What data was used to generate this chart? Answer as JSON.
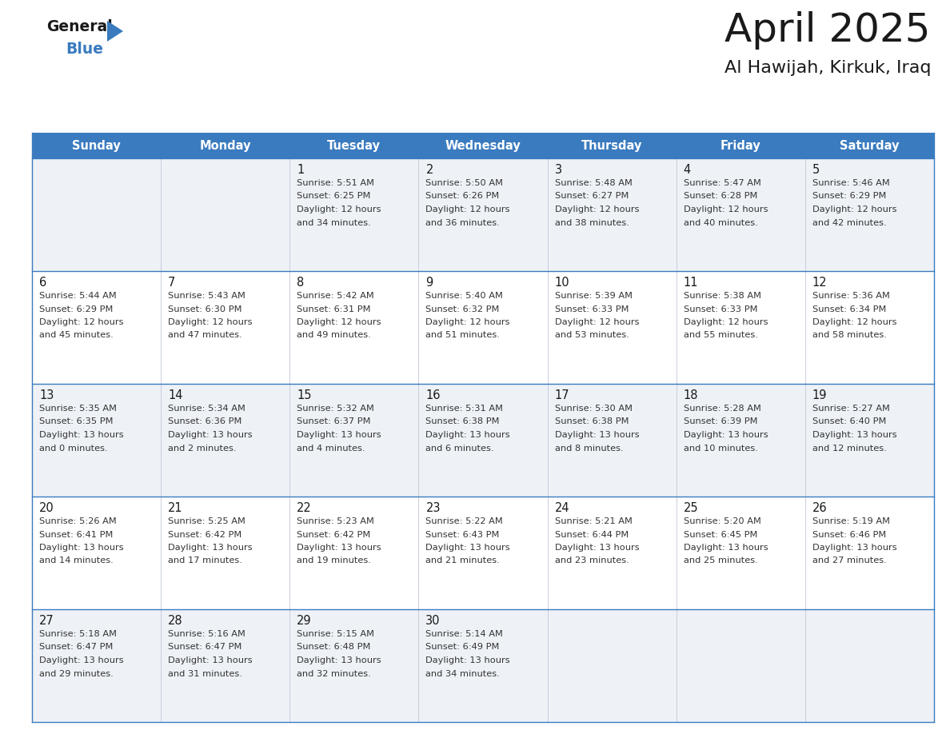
{
  "title": "April 2025",
  "subtitle": "Al Hawijah, Kirkuk, Iraq",
  "header_bg": "#3a7bbf",
  "header_text": "#ffffff",
  "row_bg_odd": "#eef2f7",
  "row_bg_even": "#ffffff",
  "border_color": "#3a7bbf",
  "separator_color": "#c0c8d8",
  "day_headers": [
    "Sunday",
    "Monday",
    "Tuesday",
    "Wednesday",
    "Thursday",
    "Friday",
    "Saturday"
  ],
  "title_color": "#1a1a1a",
  "subtitle_color": "#1a1a1a",
  "day_number_color": "#1a1a1a",
  "cell_text_color": "#333333",
  "logo_general_color": "#1a1a1a",
  "logo_blue_color": "#3a7bbf",
  "logo_triangle_color": "#3a7bbf",
  "calendar_data": [
    [
      null,
      null,
      {
        "day": 1,
        "sunrise": "5:51 AM",
        "sunset": "6:25 PM",
        "daylight_line1": "12 hours",
        "daylight_line2": "and 34 minutes."
      },
      {
        "day": 2,
        "sunrise": "5:50 AM",
        "sunset": "6:26 PM",
        "daylight_line1": "12 hours",
        "daylight_line2": "and 36 minutes."
      },
      {
        "day": 3,
        "sunrise": "5:48 AM",
        "sunset": "6:27 PM",
        "daylight_line1": "12 hours",
        "daylight_line2": "and 38 minutes."
      },
      {
        "day": 4,
        "sunrise": "5:47 AM",
        "sunset": "6:28 PM",
        "daylight_line1": "12 hours",
        "daylight_line2": "and 40 minutes."
      },
      {
        "day": 5,
        "sunrise": "5:46 AM",
        "sunset": "6:29 PM",
        "daylight_line1": "12 hours",
        "daylight_line2": "and 42 minutes."
      }
    ],
    [
      {
        "day": 6,
        "sunrise": "5:44 AM",
        "sunset": "6:29 PM",
        "daylight_line1": "12 hours",
        "daylight_line2": "and 45 minutes."
      },
      {
        "day": 7,
        "sunrise": "5:43 AM",
        "sunset": "6:30 PM",
        "daylight_line1": "12 hours",
        "daylight_line2": "and 47 minutes."
      },
      {
        "day": 8,
        "sunrise": "5:42 AM",
        "sunset": "6:31 PM",
        "daylight_line1": "12 hours",
        "daylight_line2": "and 49 minutes."
      },
      {
        "day": 9,
        "sunrise": "5:40 AM",
        "sunset": "6:32 PM",
        "daylight_line1": "12 hours",
        "daylight_line2": "and 51 minutes."
      },
      {
        "day": 10,
        "sunrise": "5:39 AM",
        "sunset": "6:33 PM",
        "daylight_line1": "12 hours",
        "daylight_line2": "and 53 minutes."
      },
      {
        "day": 11,
        "sunrise": "5:38 AM",
        "sunset": "6:33 PM",
        "daylight_line1": "12 hours",
        "daylight_line2": "and 55 minutes."
      },
      {
        "day": 12,
        "sunrise": "5:36 AM",
        "sunset": "6:34 PM",
        "daylight_line1": "12 hours",
        "daylight_line2": "and 58 minutes."
      }
    ],
    [
      {
        "day": 13,
        "sunrise": "5:35 AM",
        "sunset": "6:35 PM",
        "daylight_line1": "13 hours",
        "daylight_line2": "and 0 minutes."
      },
      {
        "day": 14,
        "sunrise": "5:34 AM",
        "sunset": "6:36 PM",
        "daylight_line1": "13 hours",
        "daylight_line2": "and 2 minutes."
      },
      {
        "day": 15,
        "sunrise": "5:32 AM",
        "sunset": "6:37 PM",
        "daylight_line1": "13 hours",
        "daylight_line2": "and 4 minutes."
      },
      {
        "day": 16,
        "sunrise": "5:31 AM",
        "sunset": "6:38 PM",
        "daylight_line1": "13 hours",
        "daylight_line2": "and 6 minutes."
      },
      {
        "day": 17,
        "sunrise": "5:30 AM",
        "sunset": "6:38 PM",
        "daylight_line1": "13 hours",
        "daylight_line2": "and 8 minutes."
      },
      {
        "day": 18,
        "sunrise": "5:28 AM",
        "sunset": "6:39 PM",
        "daylight_line1": "13 hours",
        "daylight_line2": "and 10 minutes."
      },
      {
        "day": 19,
        "sunrise": "5:27 AM",
        "sunset": "6:40 PM",
        "daylight_line1": "13 hours",
        "daylight_line2": "and 12 minutes."
      }
    ],
    [
      {
        "day": 20,
        "sunrise": "5:26 AM",
        "sunset": "6:41 PM",
        "daylight_line1": "13 hours",
        "daylight_line2": "and 14 minutes."
      },
      {
        "day": 21,
        "sunrise": "5:25 AM",
        "sunset": "6:42 PM",
        "daylight_line1": "13 hours",
        "daylight_line2": "and 17 minutes."
      },
      {
        "day": 22,
        "sunrise": "5:23 AM",
        "sunset": "6:42 PM",
        "daylight_line1": "13 hours",
        "daylight_line2": "and 19 minutes."
      },
      {
        "day": 23,
        "sunrise": "5:22 AM",
        "sunset": "6:43 PM",
        "daylight_line1": "13 hours",
        "daylight_line2": "and 21 minutes."
      },
      {
        "day": 24,
        "sunrise": "5:21 AM",
        "sunset": "6:44 PM",
        "daylight_line1": "13 hours",
        "daylight_line2": "and 23 minutes."
      },
      {
        "day": 25,
        "sunrise": "5:20 AM",
        "sunset": "6:45 PM",
        "daylight_line1": "13 hours",
        "daylight_line2": "and 25 minutes."
      },
      {
        "day": 26,
        "sunrise": "5:19 AM",
        "sunset": "6:46 PM",
        "daylight_line1": "13 hours",
        "daylight_line2": "and 27 minutes."
      }
    ],
    [
      {
        "day": 27,
        "sunrise": "5:18 AM",
        "sunset": "6:47 PM",
        "daylight_line1": "13 hours",
        "daylight_line2": "and 29 minutes."
      },
      {
        "day": 28,
        "sunrise": "5:16 AM",
        "sunset": "6:47 PM",
        "daylight_line1": "13 hours",
        "daylight_line2": "and 31 minutes."
      },
      {
        "day": 29,
        "sunrise": "5:15 AM",
        "sunset": "6:48 PM",
        "daylight_line1": "13 hours",
        "daylight_line2": "and 32 minutes."
      },
      {
        "day": 30,
        "sunrise": "5:14 AM",
        "sunset": "6:49 PM",
        "daylight_line1": "13 hours",
        "daylight_line2": "and 34 minutes."
      },
      null,
      null,
      null
    ]
  ]
}
